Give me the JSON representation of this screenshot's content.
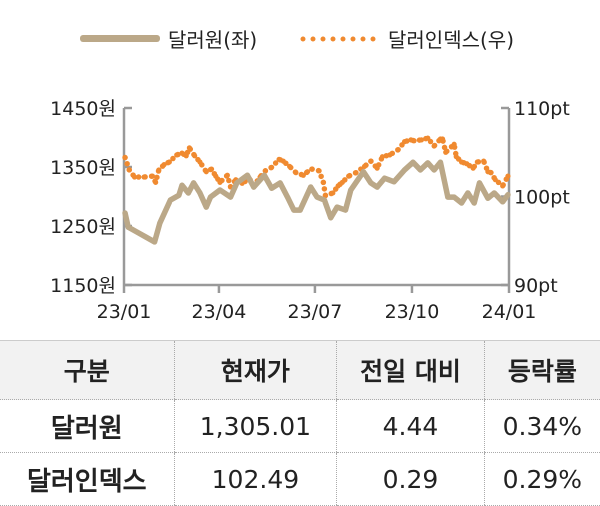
{
  "chart_data": {
    "type": "line",
    "title": "",
    "legend_position": "top",
    "x_tick_labels": [
      "23/01",
      "23/04",
      "23/07",
      "23/10",
      "24/01"
    ],
    "x_ticks": [
      "2023-01-01",
      "2023-04-01",
      "2023-07-01",
      "2023-10-01",
      "2024-01-01"
    ],
    "xlim": [
      "2023-01-01",
      "2024-01-01"
    ],
    "y_left": {
      "ylim": [
        1150,
        1450
      ],
      "tick_labels": [
        "1450원",
        "1350원",
        "1250원",
        "1150원"
      ],
      "ticks": [
        1450,
        1350,
        1250,
        1150
      ]
    },
    "y_right": {
      "ylim": [
        90,
        110
      ],
      "tick_labels": [
        "110pt",
        "100pt",
        "90pt"
      ],
      "ticks": [
        110,
        100,
        90
      ]
    },
    "grid": false,
    "series": [
      {
        "name": "달러원(좌)",
        "axis": "left",
        "style": "line",
        "color": "#bba888",
        "x": [
          "2023-01-02",
          "2023-01-05",
          "2023-01-13",
          "2023-01-22",
          "2023-01-30",
          "2023-02-04",
          "2023-02-14",
          "2023-02-22",
          "2023-02-25",
          "2023-03-03",
          "2023-03-08",
          "2023-03-14",
          "2023-03-20",
          "2023-03-24",
          "2023-04-02",
          "2023-04-12",
          "2023-04-18",
          "2023-04-28",
          "2023-05-04",
          "2023-05-14",
          "2023-05-21",
          "2023-05-29",
          "2023-06-05",
          "2023-06-11",
          "2023-06-17",
          "2023-06-27",
          "2023-07-03",
          "2023-07-10",
          "2023-07-16",
          "2023-07-22",
          "2023-07-30",
          "2023-08-04",
          "2023-08-16",
          "2023-08-23",
          "2023-08-29",
          "2023-09-05",
          "2023-09-14",
          "2023-09-24",
          "2023-10-02",
          "2023-10-09",
          "2023-10-16",
          "2023-10-22",
          "2023-10-28",
          "2023-11-04",
          "2023-11-10",
          "2023-11-17",
          "2023-11-23",
          "2023-11-29",
          "2023-12-04",
          "2023-12-12",
          "2023-12-18",
          "2023-12-26",
          "2023-12-31"
        ],
        "values": [
          1272,
          1248,
          1240,
          1231,
          1223,
          1255,
          1294,
          1302,
          1319,
          1306,
          1323,
          1306,
          1282,
          1299,
          1311,
          1299,
          1323,
          1336,
          1316,
          1336,
          1314,
          1323,
          1299,
          1277,
          1277,
          1316,
          1299,
          1294,
          1264,
          1282,
          1277,
          1311,
          1342,
          1323,
          1316,
          1331,
          1325,
          1345,
          1358,
          1345,
          1357,
          1345,
          1358,
          1299,
          1299,
          1289,
          1306,
          1289,
          1323,
          1297,
          1306,
          1291,
          1303
        ]
      },
      {
        "name": "달러인덱스(우)",
        "axis": "right",
        "style": "dotted",
        "color": "#f08a30",
        "x": [
          "2023-01-02",
          "2023-01-06",
          "2023-01-11",
          "2023-01-20",
          "2023-01-28",
          "2023-01-31",
          "2023-02-03",
          "2023-02-08",
          "2023-02-13",
          "2023-02-20",
          "2023-02-25",
          "2023-03-01",
          "2023-03-04",
          "2023-03-09",
          "2023-03-14",
          "2023-03-20",
          "2023-03-25",
          "2023-03-29",
          "2023-04-02",
          "2023-04-09",
          "2023-04-12",
          "2023-04-17",
          "2023-04-23",
          "2023-04-30",
          "2023-05-04",
          "2023-05-10",
          "2023-05-15",
          "2023-05-21",
          "2023-05-28",
          "2023-06-01",
          "2023-06-07",
          "2023-06-13",
          "2023-06-20",
          "2023-06-24",
          "2023-06-28",
          "2023-07-05",
          "2023-07-09",
          "2023-07-11",
          "2023-07-18",
          "2023-07-23",
          "2023-07-27",
          "2023-08-02",
          "2023-08-09",
          "2023-08-17",
          "2023-08-23",
          "2023-08-29",
          "2023-09-03",
          "2023-09-10",
          "2023-09-18",
          "2023-09-24",
          "2023-09-30",
          "2023-10-03",
          "2023-10-10",
          "2023-10-16",
          "2023-10-22",
          "2023-10-28",
          "2023-10-30",
          "2023-11-02",
          "2023-11-10",
          "2023-11-12",
          "2023-11-17",
          "2023-11-22",
          "2023-11-28",
          "2023-12-02",
          "2023-12-08",
          "2023-12-12",
          "2023-12-15",
          "2023-12-19",
          "2023-12-26",
          "2023-12-31"
        ],
        "values": [
          104.4,
          103.0,
          102.2,
          102.2,
          102.3,
          101.6,
          103.0,
          103.6,
          103.9,
          104.7,
          104.9,
          104.6,
          105.5,
          104.6,
          103.9,
          102.8,
          103.1,
          102.3,
          101.6,
          102.4,
          101.1,
          101.9,
          101.5,
          102.0,
          101.2,
          102.2,
          102.9,
          103.3,
          104.2,
          104.0,
          103.4,
          102.7,
          102.4,
          102.8,
          103.1,
          102.9,
          101.6,
          100.1,
          100.4,
          101.2,
          101.6,
          102.3,
          102.7,
          103.4,
          104.0,
          103.2,
          104.5,
          104.7,
          105.3,
          106.2,
          106.4,
          106.3,
          106.4,
          106.6,
          105.7,
          106.5,
          106.5,
          105.0,
          105.9,
          104.5,
          103.9,
          103.7,
          103.2,
          103.9,
          104.0,
          102.8,
          102.7,
          101.9,
          101.2,
          102.3
        ]
      }
    ]
  },
  "table": {
    "headers": [
      "구분",
      "현재가",
      "전일 대비",
      "등락률"
    ],
    "rows": [
      [
        "달러원",
        "1,305.01",
        "4.44",
        "0.34%"
      ],
      [
        "달러인덱스",
        "102.49",
        "0.29",
        "0.29%"
      ]
    ]
  }
}
